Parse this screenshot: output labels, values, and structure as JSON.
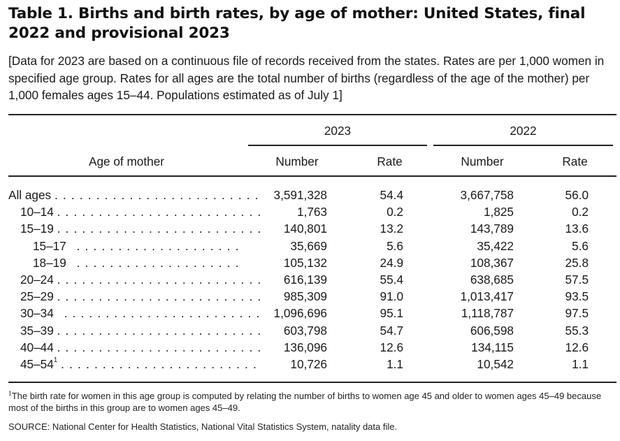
{
  "title": "Table 1. Births and birth rates, by age of mother: United States, final 2022 and provisional 2023",
  "headnote": "[Data for 2023 are based on a continuous file of records received from the states. Rates are per 1,000 women in specified age group. Rates for all ages are the total number of births (regardless of the age of the mother) per 1,000 females ages 15–44. Populations estimated as of July 1]",
  "header": {
    "stub": "Age of mother",
    "year_a": "2023",
    "year_b": "2022",
    "number": "Number",
    "rate": "Rate"
  },
  "rows": [
    {
      "label": "All ages",
      "sup": "",
      "dots": ". . . . . . . . . . . . . . . . . . . . . . . . .",
      "num23": "3,591,328",
      "rate23": "54.4",
      "num22": "3,667,758",
      "rate22": "56.0"
    },
    {
      "label": "10–14",
      "sup": "",
      "dots": ". . . . . . . . . . . . . . . . . . . . . . . . .",
      "num23": "1,763",
      "rate23": "0.2",
      "num22": "1,825",
      "rate22": "0.2"
    },
    {
      "label": "15–19",
      "sup": "",
      "dots": ". . . . . . . . . . . . . . . . . . . . . . . . .",
      "num23": "140,801",
      "rate23": "13.2",
      "num22": "143,789",
      "rate22": "13.6"
    },
    {
      "label": "15–17",
      "sup": "",
      "dots": ". . . . . . . . . . . . . . . . . . . .",
      "num23": "35,669",
      "rate23": "5.6",
      "num22": "35,422",
      "rate22": "5.6"
    },
    {
      "label": "18–19",
      "sup": "",
      "dots": ". . . . . . . . . . . . . . . . . . . .",
      "num23": "105,132",
      "rate23": "24.9",
      "num22": "108,367",
      "rate22": "25.8"
    },
    {
      "label": "20–24",
      "sup": "",
      "dots": ". . . . . . . . . . . . . . . . . . . . . . . . .",
      "num23": "616,139",
      "rate23": "55.4",
      "num22": "638,685",
      "rate22": "57.5"
    },
    {
      "label": "25–29",
      "sup": "",
      "dots": ". . . . . . . . . . . . . . . . . . . . . . . . .",
      "num23": "985,309",
      "rate23": "91.0",
      "num22": "1,013,417",
      "rate22": "93.5"
    },
    {
      "label": "30–34",
      "sup": "",
      "dots": ". . . . . . . . . . . . . . . . . . . . . . . .",
      "num23": "1,096,696",
      "rate23": "95.1",
      "num22": "1,118,787",
      "rate22": "97.5"
    },
    {
      "label": "35–39",
      "sup": "",
      "dots": ". . . . . . . . . . . . . . . . . . . . . . . . .",
      "num23": "603,798",
      "rate23": "54.7",
      "num22": "606,598",
      "rate22": "55.3"
    },
    {
      "label": "40–44",
      "sup": "",
      "dots": ". . . . . . . . . . . . . . . . . . . . . . . . .",
      "num23": "136,096",
      "rate23": "12.6",
      "num22": "134,115",
      "rate22": "12.6"
    },
    {
      "label": "45–54",
      "sup": "1",
      "dots": ". . . . . . . . . . . . . . . . . . . . . . . .",
      "num23": "10,726",
      "rate23": "1.1",
      "num22": "10,542",
      "rate22": "1.1"
    }
  ],
  "footnote_marker": "1",
  "footnote": "The birth rate for women in this age group is computed by relating the number of births to women age 45 and older to women ages 45–49 because most of the births in this group are to women ages 45–49.",
  "source": "SOURCE: National Center for Health Statistics, National Vital Statistics System, natality data file."
}
